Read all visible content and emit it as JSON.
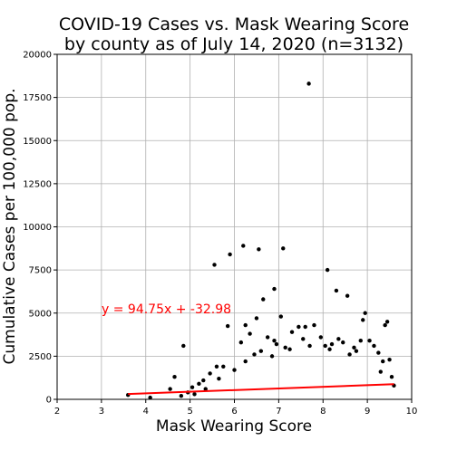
{
  "chart_data": {
    "type": "scatter",
    "title_lines": [
      "COVID-19 Cases vs. Mask Wearing Score",
      "by county as of July 14, 2020 (n=3132)"
    ],
    "xlabel": "Mask Wearing Score",
    "ylabel": "Cumulative Cases per 100,000 pop.",
    "xlim": [
      2,
      10
    ],
    "ylim": [
      0,
      20000
    ],
    "x_ticks": [
      2,
      3,
      4,
      5,
      6,
      7,
      8,
      9,
      10
    ],
    "y_ticks": [
      0,
      2500,
      5000,
      7500,
      10000,
      12500,
      15000,
      17500,
      20000
    ],
    "grid": true,
    "point_color": "#000000",
    "fit_line": {
      "slope": 94.75,
      "intercept": -32.98,
      "x_range": [
        3.6,
        9.6
      ],
      "color": "#ff0000",
      "label": "y = 94.75x + -32.98"
    },
    "series": [
      {
        "points": [
          [
            7.68,
            18300
          ],
          [
            6.2,
            8900
          ],
          [
            6.55,
            8700
          ],
          [
            7.1,
            8750
          ],
          [
            5.9,
            8400
          ],
          [
            5.55,
            7800
          ],
          [
            8.1,
            7500
          ],
          [
            6.9,
            6400
          ],
          [
            8.3,
            6300
          ],
          [
            8.55,
            6000
          ],
          [
            6.65,
            5800
          ],
          [
            8.95,
            5000
          ],
          [
            4.85,
            3100
          ],
          [
            4.65,
            1300
          ],
          [
            4.55,
            600
          ],
          [
            3.6,
            250
          ],
          [
            4.1,
            100
          ],
          [
            6.5,
            4700
          ],
          [
            7.05,
            4800
          ],
          [
            7.6,
            4200
          ],
          [
            7.8,
            4300
          ],
          [
            9.45,
            4500
          ],
          [
            9.4,
            4300
          ],
          [
            8.9,
            4600
          ],
          [
            6.25,
            4300
          ],
          [
            5.85,
            4250
          ],
          [
            6.9,
            3400
          ],
          [
            8.2,
            3200
          ],
          [
            9.5,
            2300
          ],
          [
            6.0,
            1700
          ],
          [
            5.6,
            1900
          ],
          [
            5.75,
            1900
          ],
          [
            5.3,
            1100
          ],
          [
            5.45,
            1500
          ],
          [
            5.2,
            900
          ],
          [
            5.05,
            700
          ],
          [
            4.95,
            400
          ],
          [
            4.8,
            200
          ],
          [
            5.1,
            300
          ],
          [
            5.35,
            600
          ],
          [
            5.65,
            1200
          ],
          [
            6.15,
            3300
          ],
          [
            6.35,
            3800
          ],
          [
            6.75,
            3600
          ],
          [
            6.95,
            3200
          ],
          [
            7.3,
            3900
          ],
          [
            7.45,
            4200
          ],
          [
            7.55,
            3500
          ],
          [
            7.95,
            3600
          ],
          [
            8.05,
            3100
          ],
          [
            8.35,
            3500
          ],
          [
            8.45,
            3300
          ],
          [
            8.7,
            3000
          ],
          [
            8.85,
            3400
          ],
          [
            9.05,
            3400
          ],
          [
            9.15,
            3100
          ],
          [
            9.25,
            2700
          ],
          [
            9.35,
            2200
          ],
          [
            9.55,
            1300
          ],
          [
            9.6,
            800
          ],
          [
            9.3,
            1600
          ],
          [
            8.6,
            2600
          ],
          [
            8.75,
            2800
          ],
          [
            7.15,
            3000
          ],
          [
            7.25,
            2900
          ],
          [
            6.45,
            2600
          ],
          [
            6.6,
            2800
          ],
          [
            6.85,
            2500
          ],
          [
            6.25,
            2200
          ],
          [
            7.7,
            3100
          ],
          [
            8.15,
            2900
          ]
        ]
      }
    ]
  }
}
